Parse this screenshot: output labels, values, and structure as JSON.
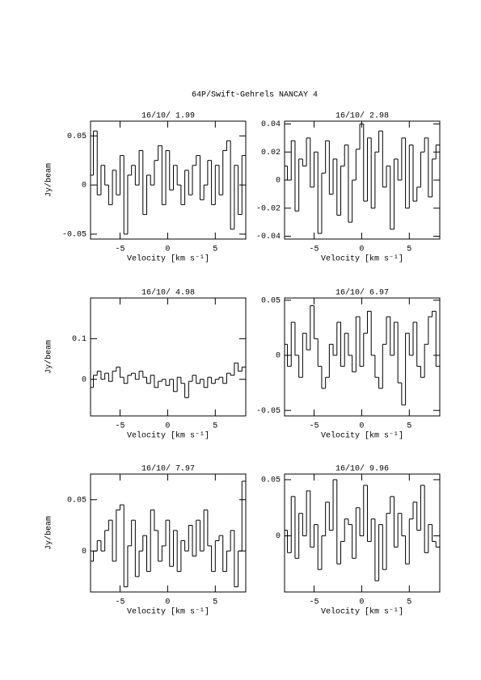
{
  "title": "64P/Swift-Gehrels   NANCAY     4",
  "chart_data": [
    {
      "type": "line",
      "drawstyle": "steps-mid",
      "title": "16/10/ 1.99",
      "xlabel": "Velocity [km s⁻¹]",
      "ylabel": "Jy/beam",
      "color": "#000000",
      "x": [
        -8,
        -7.6,
        -7.2,
        -6.8,
        -6.4,
        -6,
        -5.6,
        -5.2,
        -4.8,
        -4.4,
        -4,
        -3.6,
        -3.2,
        -2.8,
        -2.4,
        -2,
        -1.6,
        -1.2,
        -0.8,
        -0.4,
        0,
        0.4,
        0.8,
        1.2,
        1.6,
        2,
        2.4,
        2.8,
        3.2,
        3.6,
        4,
        4.4,
        4.8,
        5.2,
        5.6,
        6,
        6.4,
        6.8,
        7.2,
        7.6,
        8
      ],
      "values": [
        0.01,
        0.055,
        -0.01,
        0.02,
        0.0,
        -0.02,
        0.015,
        -0.01,
        0.03,
        -0.05,
        0.01,
        0.02,
        0.0,
        0.035,
        -0.03,
        0.01,
        0.0,
        0.025,
        0.04,
        -0.02,
        0.035,
        -0.005,
        0.02,
        0.0,
        -0.02,
        0.015,
        -0.01,
        0.02,
        0.03,
        -0.015,
        0.0,
        0.025,
        -0.02,
        0.02,
        -0.01,
        0.035,
        0.045,
        -0.045,
        0.02,
        -0.03,
        0.03
      ],
      "xlim": [
        -8.1,
        8.2
      ],
      "ylim": [
        -0.055,
        0.065
      ],
      "xticks": [
        -5,
        0,
        5
      ],
      "yticks": [
        -0.05,
        0,
        0.05
      ]
    },
    {
      "type": "line",
      "drawstyle": "steps-mid",
      "title": "16/10/ 2.98",
      "xlabel": "Velocity [km s⁻¹]",
      "color": "#000000",
      "x": [
        -8,
        -7.6,
        -7.2,
        -6.8,
        -6.4,
        -6,
        -5.6,
        -5.2,
        -4.8,
        -4.4,
        -4,
        -3.6,
        -3.2,
        -2.8,
        -2.4,
        -2,
        -1.6,
        -1.2,
        -0.8,
        -0.4,
        0,
        0.4,
        0.8,
        1.2,
        1.6,
        2,
        2.4,
        2.8,
        3.2,
        3.6,
        4,
        4.4,
        4.8,
        5.2,
        5.6,
        6,
        6.4,
        6.8,
        7.2,
        7.6,
        8
      ],
      "values": [
        0.01,
        0.0,
        0.028,
        -0.022,
        0.015,
        0.01,
        0.03,
        -0.005,
        0.02,
        -0.038,
        0.005,
        0.028,
        -0.01,
        0.015,
        -0.025,
        0.01,
        0.025,
        -0.03,
        0.0,
        0.022,
        0.04,
        -0.015,
        0.03,
        -0.02,
        0.02,
        0.035,
        -0.005,
        0.01,
        -0.035,
        0.015,
        0.0,
        0.03,
        -0.02,
        0.025,
        -0.015,
        -0.005,
        0.02,
        0.03,
        -0.012,
        0.015,
        0.025
      ],
      "xlim": [
        -8.1,
        8.2
      ],
      "ylim": [
        -0.042,
        0.042
      ],
      "xticks": [
        -5,
        0,
        5
      ],
      "yticks": [
        -0.04,
        -0.02,
        0,
        0.02,
        0.04
      ]
    },
    {
      "type": "line",
      "drawstyle": "steps-mid",
      "title": "16/10/ 4.98",
      "xlabel": "Velocity [km s⁻¹]",
      "ylabel": "Jy/beam",
      "color": "#000000",
      "x": [
        -8,
        -7.6,
        -7.2,
        -6.8,
        -6.4,
        -6,
        -5.6,
        -5.2,
        -4.8,
        -4.4,
        -4,
        -3.6,
        -3.2,
        -2.8,
        -2.4,
        -2,
        -1.6,
        -1.2,
        -0.8,
        -0.4,
        0,
        0.4,
        0.8,
        1.2,
        1.6,
        2,
        2.4,
        2.8,
        3.2,
        3.6,
        4,
        4.4,
        4.8,
        5.2,
        5.6,
        6,
        6.4,
        6.8,
        7.2,
        7.6,
        8
      ],
      "values": [
        -0.02,
        0.01,
        0.02,
        0.0,
        0.015,
        -0.005,
        0.02,
        0.03,
        0.005,
        -0.01,
        0.01,
        0.015,
        0.0,
        0.02,
        0.005,
        -0.01,
        0.01,
        -0.02,
        -0.005,
        0.0,
        -0.015,
        0.0,
        -0.03,
        0.005,
        -0.01,
        -0.045,
        -0.005,
        0.01,
        -0.01,
        0.0,
        -0.02,
        0.005,
        -0.01,
        0.0,
        0.005,
        -0.01,
        0.015,
        0.01,
        0.04,
        0.02,
        0.03
      ],
      "xlim": [
        -8.1,
        8.2
      ],
      "ylim": [
        -0.09,
        0.2
      ],
      "xticks": [
        -5,
        0,
        5
      ],
      "yticks": [
        0,
        0.1
      ]
    },
    {
      "type": "line",
      "drawstyle": "steps-mid",
      "title": "16/10/ 6.97",
      "xlabel": "Velocity [km s⁻¹]",
      "color": "#000000",
      "x": [
        -8,
        -7.6,
        -7.2,
        -6.8,
        -6.4,
        -6,
        -5.6,
        -5.2,
        -4.8,
        -4.4,
        -4,
        -3.6,
        -3.2,
        -2.8,
        -2.4,
        -2,
        -1.6,
        -1.2,
        -0.8,
        -0.4,
        0,
        0.4,
        0.8,
        1.2,
        1.6,
        2,
        2.4,
        2.8,
        3.2,
        3.6,
        4,
        4.4,
        4.8,
        5.2,
        5.6,
        6,
        6.4,
        6.8,
        7.2,
        7.6,
        8
      ],
      "values": [
        0.01,
        -0.01,
        0.03,
        0.0,
        -0.02,
        0.02,
        0.005,
        0.045,
        0.015,
        -0.01,
        -0.03,
        -0.02,
        0.01,
        0.0,
        0.03,
        -0.01,
        0.02,
        0.0,
        -0.015,
        0.035,
        -0.01,
        0.02,
        0.04,
        0.0,
        -0.02,
        -0.03,
        0.01,
        0.035,
        0.0,
        0.03,
        -0.025,
        -0.045,
        0.02,
        0.0,
        0.03,
        -0.01,
        -0.02,
        0.01,
        0.035,
        0.04,
        -0.01
      ],
      "xlim": [
        -8.1,
        8.2
      ],
      "ylim": [
        -0.055,
        0.052
      ],
      "xticks": [
        -5,
        0,
        5
      ],
      "yticks": [
        -0.05,
        0,
        0.05
      ]
    },
    {
      "type": "line",
      "drawstyle": "steps-mid",
      "title": "16/10/ 7.97",
      "xlabel": "Velocity [km s⁻¹]",
      "ylabel": "Jy/beam",
      "color": "#000000",
      "x": [
        -8,
        -7.6,
        -7.2,
        -6.8,
        -6.4,
        -6,
        -5.6,
        -5.2,
        -4.8,
        -4.4,
        -4,
        -3.6,
        -3.2,
        -2.8,
        -2.4,
        -2,
        -1.6,
        -1.2,
        -0.8,
        -0.4,
        0,
        0.4,
        0.8,
        1.2,
        1.6,
        2,
        2.4,
        2.8,
        3.2,
        3.6,
        4,
        4.4,
        4.8,
        5.2,
        5.6,
        6,
        6.4,
        6.8,
        7.2,
        7.6,
        8
      ],
      "values": [
        -0.01,
        0.0,
        0.01,
        0.0,
        0.02,
        0.03,
        -0.01,
        0.04,
        0.045,
        -0.035,
        0.005,
        0.03,
        -0.025,
        0.0,
        0.015,
        -0.02,
        0.04,
        0.02,
        -0.01,
        0.005,
        0.03,
        -0.015,
        0.02,
        -0.02,
        0.01,
        0.0,
        0.025,
        -0.005,
        0.03,
        0.0,
        0.04,
        0.005,
        -0.02,
        0.01,
        0.015,
        -0.02,
        0.0,
        0.02,
        -0.035,
        0.0,
        0.068
      ],
      "xlim": [
        -8.1,
        8.2
      ],
      "ylim": [
        -0.04,
        0.075
      ],
      "xticks": [
        -5,
        0,
        5
      ],
      "yticks": [
        0,
        0.05
      ]
    },
    {
      "type": "line",
      "drawstyle": "steps-mid",
      "title": "16/10/ 9.96",
      "xlabel": "Velocity [km s⁻¹]",
      "color": "#000000",
      "x": [
        -8,
        -7.6,
        -7.2,
        -6.8,
        -6.4,
        -6,
        -5.6,
        -5.2,
        -4.8,
        -4.4,
        -4,
        -3.6,
        -3.2,
        -2.8,
        -2.4,
        -2,
        -1.6,
        -1.2,
        -0.8,
        -0.4,
        0,
        0.4,
        0.8,
        1.2,
        1.6,
        2,
        2.4,
        2.8,
        3.2,
        3.6,
        4,
        4.4,
        4.8,
        5.2,
        5.6,
        6,
        6.4,
        6.8,
        7.2,
        7.6,
        8
      ],
      "values": [
        0.005,
        -0.015,
        0.035,
        -0.02,
        0.02,
        0.0,
        0.04,
        -0.01,
        0.01,
        -0.03,
        0.0,
        0.03,
        0.005,
        0.05,
        -0.025,
        -0.005,
        0.015,
        0.01,
        -0.02,
        0.025,
        0.0,
        0.045,
        -0.005,
        0.015,
        -0.04,
        0.01,
        -0.03,
        0.02,
        0.035,
        -0.01,
        0.02,
        0.0,
        -0.025,
        0.015,
        0.03,
        0.005,
        0.045,
        -0.015,
        0.01,
        -0.005,
        -0.01
      ],
      "xlim": [
        -8.1,
        8.2
      ],
      "ylim": [
        -0.05,
        0.055
      ],
      "xticks": [
        -5,
        0,
        5
      ],
      "yticks": [
        0,
        0.05
      ]
    }
  ]
}
